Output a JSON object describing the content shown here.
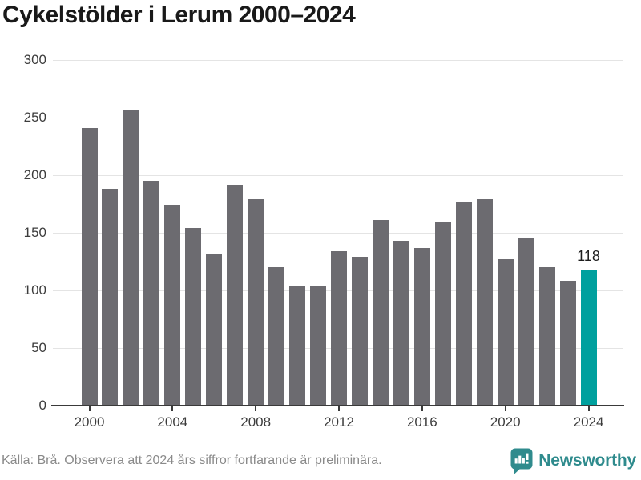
{
  "title": "Cykelstölder i Lerum 2000–2024",
  "chart_data": {
    "type": "bar",
    "title": "Cykelstölder i Lerum 2000–2024",
    "xlabel": "",
    "ylabel": "",
    "categories": [
      "2000",
      "2001",
      "2002",
      "2003",
      "2004",
      "2005",
      "2006",
      "2007",
      "2008",
      "2009",
      "2010",
      "2011",
      "2012",
      "2013",
      "2014",
      "2015",
      "2016",
      "2017",
      "2018",
      "2019",
      "2020",
      "2021",
      "2022",
      "2023",
      "2024"
    ],
    "values": [
      241,
      188,
      257,
      195,
      174,
      154,
      131,
      192,
      179,
      120,
      104,
      104,
      134,
      129,
      161,
      143,
      137,
      160,
      177,
      179,
      127,
      145,
      120,
      108,
      118
    ],
    "ylim": [
      0,
      300
    ],
    "y_ticks": [
      0,
      50,
      100,
      150,
      200,
      250,
      300
    ],
    "x_tick_labels": [
      "2000",
      "2004",
      "2008",
      "2012",
      "2016",
      "2020",
      "2024"
    ],
    "grid": true,
    "legend": false,
    "bar_color": "#6c6b70",
    "highlight_color": "#00a09e",
    "highlight_index": 24,
    "annotation": {
      "text": "118",
      "year": "2024"
    }
  },
  "footer": {
    "source": "Källa: Brå. Observera att 2024 års siffror fortfarande är preliminära.",
    "logo_text": "Newsworthy",
    "logo_color": "#2f8b8d"
  }
}
